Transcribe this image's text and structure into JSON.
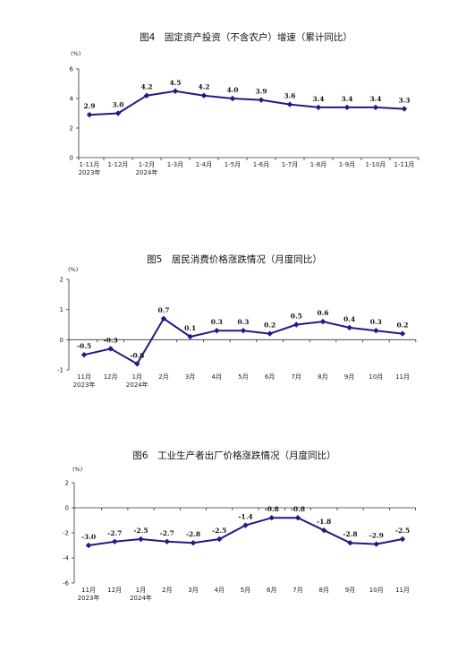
{
  "chart_data": [
    {
      "type": "line",
      "title": "图4　固定资产投资（不含农户）增速（累计同比）",
      "unit": "(%)",
      "categories": [
        "1-11月",
        "1-12月",
        "1-2月",
        "1-3月",
        "1-4月",
        "1-5月",
        "1-6月",
        "1-7月",
        "1-8月",
        "1-9月",
        "1-10月",
        "1-11月"
      ],
      "year_labels": [
        "2023年",
        "",
        "2024年",
        "",
        "",
        "",
        "",
        "",
        "",
        "",
        "",
        ""
      ],
      "values": [
        2.9,
        3.0,
        4.2,
        4.5,
        4.2,
        4.0,
        3.9,
        3.6,
        3.4,
        3.4,
        3.4,
        3.3
      ],
      "labels": [
        "2.9",
        "3.0",
        "4.2",
        "4.5",
        "4.2",
        "4.0",
        "3.9",
        "3.6",
        "3.4",
        "3.4",
        "3.4",
        "3.3"
      ],
      "ylim": [
        0,
        6
      ],
      "yticks": [
        0,
        2,
        4,
        6
      ],
      "ytick_labels": [
        "0",
        "2",
        "4",
        "6"
      ],
      "grid": false,
      "color": "#1c1c84"
    },
    {
      "type": "line",
      "title": "图5　居民消费价格涨跌情况（月度同比）",
      "unit": "(%)",
      "categories": [
        "11月",
        "12月",
        "1月",
        "2月",
        "3月",
        "4月",
        "5月",
        "6月",
        "7月",
        "8月",
        "9月",
        "10月",
        "11月"
      ],
      "year_labels": [
        "2023年",
        "",
        "2024年",
        "",
        "",
        "",
        "",
        "",
        "",
        "",
        "",
        "",
        ""
      ],
      "values": [
        -0.5,
        -0.3,
        -0.8,
        0.7,
        0.1,
        0.3,
        0.3,
        0.2,
        0.5,
        0.6,
        0.4,
        0.3,
        0.2
      ],
      "labels": [
        "-0.5",
        "-0.3",
        "-0.8",
        "0.7",
        "0.1",
        "0.3",
        "0.3",
        "0.2",
        "0.5",
        "0.6",
        "0.4",
        "0.3",
        "0.2"
      ],
      "ylim": [
        -1,
        2
      ],
      "yticks": [
        -1,
        0,
        1,
        2
      ],
      "ytick_labels": [
        "-1",
        "0",
        "1",
        "2"
      ],
      "grid": false,
      "color": "#1c1c84"
    },
    {
      "type": "line",
      "title": "图6　工业生产者出厂价格涨跌情况（月度同比）",
      "unit": "(%)",
      "categories": [
        "11月",
        "12月",
        "1月",
        "2月",
        "3月",
        "4月",
        "5月",
        "6月",
        "7月",
        "8月",
        "9月",
        "10月",
        "11月"
      ],
      "year_labels": [
        "2023年",
        "",
        "2024年",
        "",
        "",
        "",
        "",
        "",
        "",
        "",
        "",
        "",
        ""
      ],
      "values": [
        -3.0,
        -2.7,
        -2.5,
        -2.7,
        -2.8,
        -2.5,
        -1.4,
        -0.8,
        -0.8,
        -1.8,
        -2.8,
        -2.9,
        -2.5
      ],
      "labels": [
        "-3.0",
        "-2.7",
        "-2.5",
        "-2.7",
        "-2.8",
        "-2.5",
        "-1.4",
        "-0.8",
        "-0.8",
        "-1.8",
        "-2.8",
        "-2.9",
        "-2.5"
      ],
      "ylim": [
        -6,
        2
      ],
      "yticks": [
        -6,
        -4,
        -2,
        0,
        2
      ],
      "ytick_labels": [
        "-6",
        "-4",
        "-2",
        "0",
        "2"
      ],
      "grid": false,
      "color": "#1c1c84"
    }
  ]
}
